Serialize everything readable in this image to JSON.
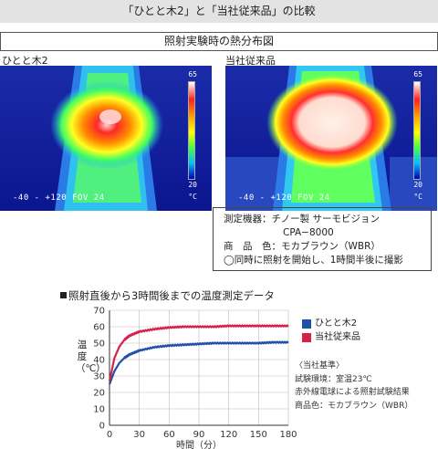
{
  "header": {
    "title": "「ひとと木2」と「当社従来品」の比較"
  },
  "thermal_section": {
    "title": "照射実験時の熱分布図",
    "panels": [
      {
        "label": "ひとと木2",
        "scale_max": "65",
        "scale_min": "20",
        "unit": "°C",
        "overlay": "-40 - +120 FOV 24",
        "hotspot": "small"
      },
      {
        "label": "当社従来品",
        "scale_max": "65",
        "scale_min": "20",
        "unit": "°C",
        "overlay": "-40 - +120 FOV 24",
        "hotspot": "large"
      }
    ]
  },
  "measurement_info": {
    "device_line": "測定機器：チノー製 サーモビジョン",
    "model_line": "CPA−8000",
    "color_line": "商　品　色：モカブラウン（WBR）",
    "note_line": "◯同時に照射を開始し、1時間半後に撮影"
  },
  "chart_heading": "照射直後から3時間後までの温度測定データ",
  "chart_data": {
    "type": "line",
    "xlabel": "時間（分）",
    "ylabel": "温度（℃）",
    "xlim": [
      0,
      180
    ],
    "ylim": [
      0,
      70
    ],
    "xticks": [
      "0",
      "30",
      "60",
      "90",
      "120",
      "150",
      "180"
    ],
    "yticks": [
      "0",
      "10",
      "20",
      "30",
      "40",
      "50",
      "60",
      "70"
    ],
    "grid": true,
    "legend": "right",
    "series": [
      {
        "name": "ひとと木2",
        "color": "#1f4fa8",
        "x": [
          0,
          5,
          10,
          15,
          20,
          30,
          45,
          60,
          75,
          90,
          105,
          120,
          135,
          150,
          165,
          180
        ],
        "values": [
          25,
          33,
          38,
          41,
          43,
          45.5,
          47.5,
          48.5,
          49,
          49.5,
          50,
          50,
          50,
          50,
          50.5,
          50.5
        ]
      },
      {
        "name": "当社従来品",
        "color": "#d8204a",
        "x": [
          0,
          5,
          10,
          15,
          20,
          30,
          45,
          60,
          75,
          90,
          105,
          120,
          135,
          150,
          165,
          180
        ],
        "values": [
          27,
          41,
          48,
          52,
          54.5,
          57,
          58.5,
          59.5,
          60,
          60,
          60,
          60.5,
          60.5,
          60.5,
          60.5,
          60.5
        ]
      }
    ]
  },
  "basis": {
    "title": "〈当社基準〉",
    "lines": [
      "試験環境：室温23℃",
      "赤外線電球による照射試験結果",
      "商品色：モカブラウン（WBR）"
    ]
  }
}
